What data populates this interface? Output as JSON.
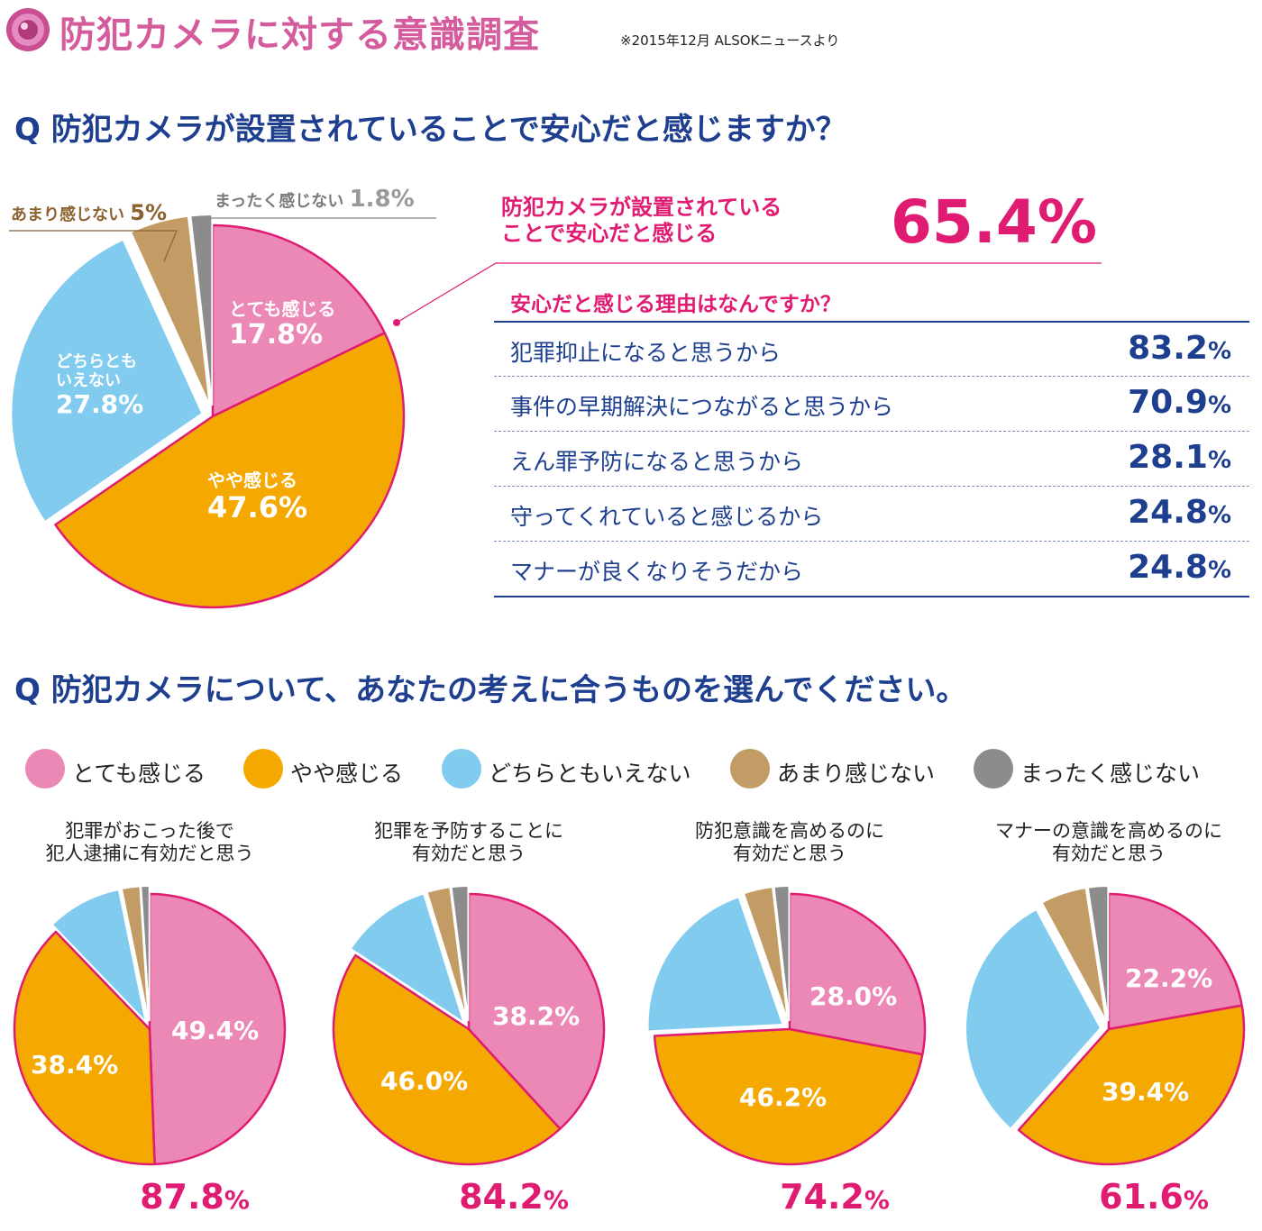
{
  "header": {
    "title": "防犯カメラに対する意識調査",
    "source": "※2015年12月 ALSOKニュースより"
  },
  "colors": {
    "very": "#ec88b6",
    "somewhat": "#f4a800",
    "neutral": "#81cbef",
    "notmuch": "#c39c65",
    "notatall": "#8c8c8c",
    "accent": "#e01b72",
    "navy": "#1e3f8f"
  },
  "question1": "Q 防犯カメラが設置されていることで安心だと感じますか？",
  "question2": "Q 防犯カメラについて、あなたの考えに合うものを選んでください。",
  "main_pie": {
    "slices": [
      {
        "label": "とても感じる",
        "value_text": "17.8%"
      },
      {
        "label": "やや感じる",
        "value_text": "47.6%"
      },
      {
        "label_line1": "どちらとも",
        "label_line2": "いえない",
        "value_text": "27.8%"
      },
      {
        "label": "あまり感じない",
        "value_text": "5%"
      },
      {
        "label": "まったく感じない",
        "value_text": "1.8%"
      }
    ]
  },
  "callout": {
    "line1": "防犯カメラが設置されている",
    "line2": "ことで安心だと感じる",
    "value": "65.4%"
  },
  "reasons": {
    "title": "安心だと感じる理由はなんですか？",
    "pct_sign": "%",
    "items": [
      {
        "label": "犯罪抑止になると思うから",
        "value": "83.2"
      },
      {
        "label": "事件の早期解決につながると思うから",
        "value": "70.9"
      },
      {
        "label": "えん罪予防になると思うから",
        "value": "28.1"
      },
      {
        "label": "守ってくれていると感じるから",
        "value": "24.8"
      },
      {
        "label": "マナーが良くなりそうだから",
        "value": "24.8"
      }
    ]
  },
  "legend": [
    "とても感じる",
    "やや感じる",
    "どちらともいえない",
    "あまり感じない",
    "まったく感じない"
  ],
  "small_charts": [
    {
      "title1": "犯罪がおこった後で",
      "title2": "犯人逮捕に有効だと思う",
      "label_very": "49.4%",
      "label_somewhat": "38.4%",
      "total": "87.8",
      "pct_sign": "%"
    },
    {
      "title1": "犯罪を予防することに",
      "title2": "有効だと思う",
      "label_very": "38.2%",
      "label_somewhat": "46.0%",
      "total": "84.2",
      "pct_sign": "%"
    },
    {
      "title1": "防犯意識を高めるのに",
      "title2": "有効だと思う",
      "label_very": "28.0%",
      "label_somewhat": "46.2%",
      "total": "74.2",
      "pct_sign": "%"
    },
    {
      "title1": "マナーの意識を高めるのに",
      "title2": "有効だと思う",
      "label_very": "22.2%",
      "label_somewhat": "39.4%",
      "total": "61.6",
      "pct_sign": "%"
    }
  ],
  "chart_data": [
    {
      "type": "pie",
      "title": "防犯カメラが設置されていることで安心だと感じますか？",
      "categories": [
        "とても感じる",
        "やや感じる",
        "どちらともいえない",
        "あまり感じない",
        "まったく感じない"
      ],
      "values": [
        17.8,
        47.6,
        27.8,
        5.0,
        1.8
      ]
    },
    {
      "type": "bar",
      "title": "安心だと感じる理由はなんですか？",
      "categories": [
        "犯罪抑止になると思うから",
        "事件の早期解決につながると思うから",
        "えん罪予防になると思うから",
        "守ってくれていると感じるから",
        "マナーが良くなりそうだから"
      ],
      "values": [
        83.2,
        70.9,
        28.1,
        24.8,
        24.8
      ]
    },
    {
      "type": "pie",
      "title": "犯罪がおこった後で犯人逮捕に有効だと思う",
      "categories": [
        "とても感じる",
        "やや感じる",
        "どちらともいえない",
        "あまり感じない",
        "まったく感じない"
      ],
      "values": [
        49.4,
        38.4,
        9.0,
        2.2,
        1.0
      ]
    },
    {
      "type": "pie",
      "title": "犯罪を予防することに有効だと思う",
      "categories": [
        "とても感じる",
        "やや感じる",
        "どちらともいえない",
        "あまり感じない",
        "まったく感じない"
      ],
      "values": [
        38.2,
        46.0,
        11.0,
        2.8,
        2.0
      ]
    },
    {
      "type": "pie",
      "title": "防犯意識を高めるのに有効だと思う",
      "categories": [
        "とても感じる",
        "やや感じる",
        "どちらともいえない",
        "あまり感じない",
        "まったく感じない"
      ],
      "values": [
        28.0,
        46.2,
        20.5,
        3.5,
        1.8
      ]
    },
    {
      "type": "pie",
      "title": "マナーの意識を高めるのに有効だと思う",
      "categories": [
        "とても感じる",
        "やや感じる",
        "どちらともいえない",
        "あまり感じない",
        "まったく感じない"
      ],
      "values": [
        22.2,
        39.4,
        30.5,
        5.5,
        2.4
      ]
    }
  ]
}
